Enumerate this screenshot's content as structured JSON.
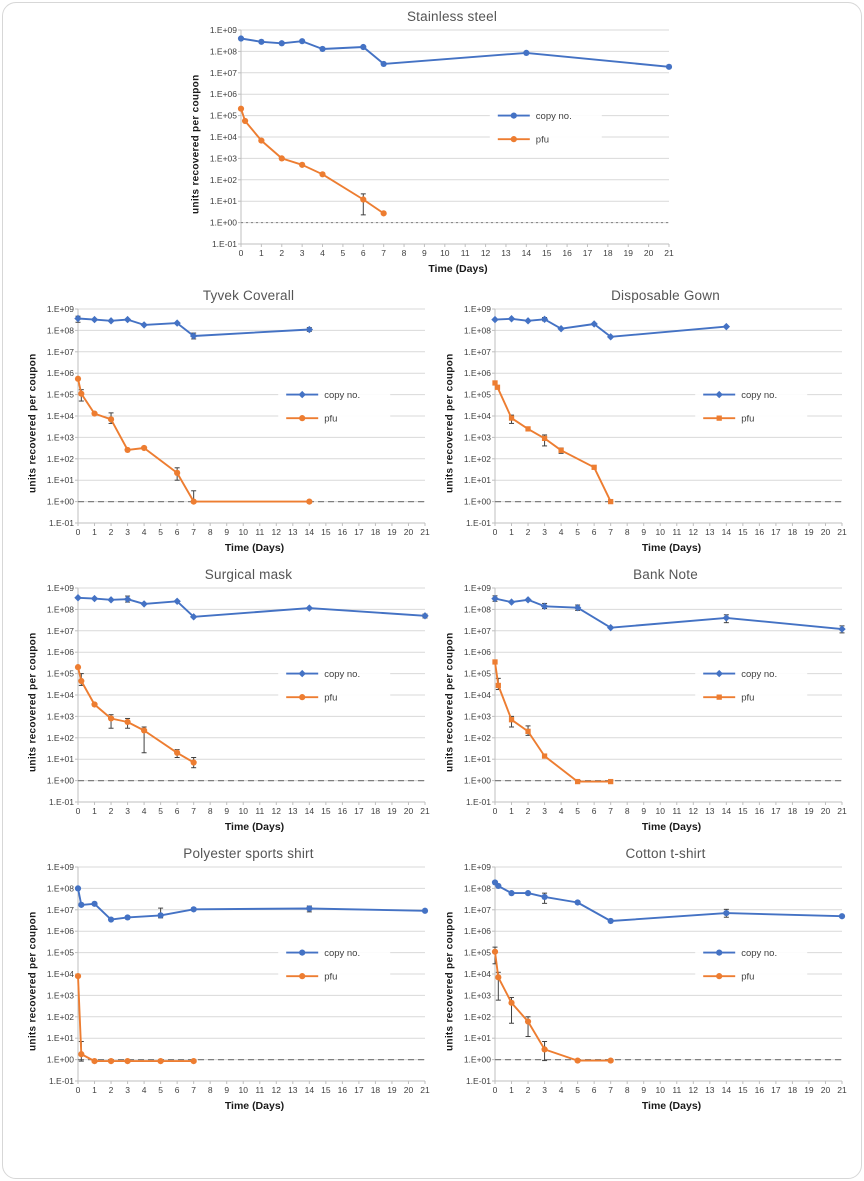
{
  "page": {
    "kind": "multi-panel scientific figure",
    "background": "#ffffff",
    "frame_color": "#d7d7d7"
  },
  "colors": {
    "copy_no": "#4472C4",
    "pfu": "#ED7D31",
    "gridline": "#d9d9d9",
    "axis": "#bfbfbf",
    "error_bar": "#404040",
    "limit_line": "#7f7f7f",
    "tick_text": "#404040",
    "title_text": "#555555"
  },
  "axes": {
    "x_ticks": [
      0,
      1,
      2,
      3,
      4,
      5,
      6,
      7,
      8,
      9,
      10,
      11,
      12,
      13,
      14,
      15,
      16,
      17,
      18,
      19,
      20,
      21
    ],
    "y_tick_labels": [
      "1.E+09",
      "1.E+08",
      "1.E+07",
      "1.E+06",
      "1.E+05",
      "1.E+04",
      "1.E+03",
      "1.E+02",
      "1.E+01",
      "1.E+00",
      "1.E-01"
    ],
    "y_exp_max": 9,
    "y_exp_min": -1,
    "xlim": [
      0,
      21
    ]
  },
  "legend": {
    "items": [
      {
        "label": "copy no.",
        "color": "#4472C4"
      },
      {
        "label": "pfu",
        "color": "#ED7D31"
      }
    ],
    "position": "inside-right"
  },
  "chart_data": [
    {
      "type": "line",
      "title": "Stainless steel",
      "xlabel": "Time (Days)",
      "ylabel": "units recovered per coupon",
      "xlim": [
        0,
        21
      ],
      "ylim": [
        0.1,
        1000000000
      ],
      "y_scale": "log",
      "grid": true,
      "detection_limit": 1,
      "limit_line_style": "dotted",
      "series": [
        {
          "name": "copy no.",
          "color": "#4472C4",
          "marker": "circle",
          "points": [
            [
              0,
              400000000.0
            ],
            [
              1,
              280000000.0
            ],
            [
              2,
              240000000.0
            ],
            [
              3,
              300000000.0
            ],
            [
              4,
              130000000.0
            ],
            [
              6,
              160000000.0
            ],
            [
              7,
              26000000.0
            ],
            [
              14,
              85000000.0
            ],
            [
              21,
              19000000.0
            ]
          ]
        },
        {
          "name": "pfu",
          "color": "#ED7D31",
          "marker": "circle",
          "points": [
            [
              0,
              210000.0
            ],
            [
              0.2,
              56000.0
            ],
            [
              1,
              6800.0
            ],
            [
              2,
              1000.0
            ],
            [
              3,
              500.0
            ],
            [
              4,
              180.0
            ],
            [
              6,
              12.0,
              2.3,
              22.0
            ],
            [
              7,
              2.7
            ]
          ]
        }
      ]
    },
    {
      "type": "line",
      "title": "Tyvek Coverall",
      "xlabel": "Time (Days)",
      "ylabel": "units recovered per coupon",
      "xlim": [
        0,
        21
      ],
      "ylim": [
        0.1,
        1000000000
      ],
      "y_scale": "log",
      "grid": true,
      "detection_limit": 1,
      "limit_line_style": "dashed",
      "series": [
        {
          "name": "copy no.",
          "color": "#4472C4",
          "marker": "diamond",
          "points": [
            [
              0,
              360000000.0,
              240000000.0,
              460000000.0
            ],
            [
              1,
              320000000.0
            ],
            [
              2,
              280000000.0
            ],
            [
              3,
              320000000.0
            ],
            [
              4,
              180000000.0
            ],
            [
              6,
              220000000.0
            ],
            [
              7,
              55000000.0,
              40000000.0,
              75000000.0
            ],
            [
              14,
              110000000.0,
              90000000.0,
              135000000.0
            ]
          ]
        },
        {
          "name": "pfu",
          "color": "#ED7D31",
          "marker": "circle",
          "points": [
            [
              0,
              550000.0
            ],
            [
              0.2,
              110000.0,
              50000.0,
              170000.0
            ],
            [
              1,
              13000.0
            ],
            [
              2,
              7000.0,
              4500.0,
              14000.0
            ],
            [
              3,
              260.0
            ],
            [
              4,
              320.0
            ],
            [
              6,
              22.0,
              10.0,
              38.0
            ],
            [
              7,
              1.0,
              1.0,
              3.2
            ],
            [
              14,
              1.0
            ]
          ]
        }
      ]
    },
    {
      "type": "line",
      "title": "Disposable Gown",
      "xlabel": "Time (Days)",
      "ylabel": "units recovered per coupon",
      "xlim": [
        0,
        21
      ],
      "ylim": [
        0.1,
        1000000000
      ],
      "y_scale": "log",
      "grid": true,
      "detection_limit": 1,
      "limit_line_style": "dashed",
      "series": [
        {
          "name": "copy no.",
          "color": "#4472C4",
          "marker": "diamond",
          "points": [
            [
              0,
              320000000.0
            ],
            [
              1,
              350000000.0
            ],
            [
              2,
              280000000.0
            ],
            [
              3,
              330000000.0,
              280000000.0,
              400000000.0
            ],
            [
              4,
              120000000.0
            ],
            [
              6,
              200000000.0
            ],
            [
              7,
              50000000.0
            ],
            [
              14,
              150000000.0
            ]
          ]
        },
        {
          "name": "pfu",
          "color": "#ED7D31",
          "marker": "square",
          "points": [
            [
              0,
              350000.0
            ],
            [
              0.15,
              220000.0
            ],
            [
              1,
              8000.0,
              4500.0,
              11000.0
            ],
            [
              2,
              2500.0
            ],
            [
              3,
              900.0,
              400.0,
              1300.0
            ],
            [
              4,
              250.0,
              180.0,
              320.0
            ],
            [
              6,
              40.0
            ],
            [
              7,
              1.0
            ]
          ]
        }
      ]
    },
    {
      "type": "line",
      "title": "Surgical mask",
      "xlabel": "Time (Days)",
      "ylabel": "units recovered per coupon",
      "xlim": [
        0,
        21
      ],
      "ylim": [
        0.1,
        1000000000
      ],
      "y_scale": "log",
      "grid": true,
      "detection_limit": 1,
      "limit_line_style": "dashed",
      "series": [
        {
          "name": "copy no.",
          "color": "#4472C4",
          "marker": "diamond",
          "points": [
            [
              0,
              350000000.0
            ],
            [
              1,
              320000000.0
            ],
            [
              2,
              280000000.0
            ],
            [
              3,
              300000000.0,
              220000000.0,
              420000000.0
            ],
            [
              4,
              180000000.0
            ],
            [
              6,
              240000000.0
            ],
            [
              7,
              45000000.0
            ],
            [
              14,
              115000000.0
            ],
            [
              21,
              50000000.0,
              40000000.0,
              60000000.0
            ]
          ]
        },
        {
          "name": "pfu",
          "color": "#ED7D31",
          "marker": "circle",
          "points": [
            [
              0,
              200000.0
            ],
            [
              0.2,
              45000.0,
              28000.0,
              100000.0
            ],
            [
              1,
              3600.0
            ],
            [
              2,
              800.0,
              280.0,
              1200.0
            ],
            [
              3,
              550.0,
              280.0,
              800.0
            ],
            [
              4,
              220.0,
              20.0,
              320.0
            ],
            [
              6,
              20.0,
              12.0,
              28.0
            ],
            [
              7,
              7.0,
              4.0,
              12.0
            ]
          ]
        }
      ]
    },
    {
      "type": "line",
      "title": "Bank Note",
      "xlabel": "Time (Days)",
      "ylabel": "units recovered per coupon",
      "xlim": [
        0,
        21
      ],
      "ylim": [
        0.1,
        1000000000
      ],
      "y_scale": "log",
      "grid": true,
      "detection_limit": 1,
      "limit_line_style": "dashed",
      "series": [
        {
          "name": "copy no.",
          "color": "#4472C4",
          "marker": "diamond",
          "points": [
            [
              0,
              320000000.0,
              240000000.0,
              430000000.0
            ],
            [
              1,
              220000000.0
            ],
            [
              2,
              280000000.0
            ],
            [
              3,
              140000000.0,
              110000000.0,
              190000000.0
            ],
            [
              5,
              120000000.0,
              90000000.0,
              160000000.0
            ],
            [
              7,
              14000000.0
            ],
            [
              14,
              40000000.0,
              24000000.0,
              56000000.0
            ],
            [
              21,
              12000000.0,
              8000000.0,
              17000000.0
            ]
          ]
        },
        {
          "name": "pfu",
          "color": "#ED7D31",
          "marker": "square",
          "points": [
            [
              0,
              350000.0
            ],
            [
              0.2,
              28000.0,
              18000.0,
              60000.0
            ],
            [
              1,
              700.0,
              320.0,
              1000.0
            ],
            [
              2,
              200.0,
              130.0,
              360.0
            ],
            [
              3,
              14.0
            ],
            [
              5,
              0.9
            ],
            [
              7,
              0.9
            ]
          ]
        }
      ]
    },
    {
      "type": "line",
      "title": "Polyester sports shirt",
      "xlabel": "Time (Days)",
      "ylabel": "units recovered per coupon",
      "xlim": [
        0,
        21
      ],
      "ylim": [
        0.1,
        1000000000
      ],
      "y_scale": "log",
      "grid": true,
      "detection_limit": 1,
      "limit_line_style": "dashed",
      "series": [
        {
          "name": "copy no.",
          "color": "#4472C4",
          "marker": "circle",
          "points": [
            [
              0,
              100000000.0
            ],
            [
              0.2,
              17000000.0
            ],
            [
              1,
              19000000.0
            ],
            [
              2,
              3500000.0
            ],
            [
              3,
              4400000.0
            ],
            [
              5,
              5500000.0,
              4200000.0,
              12000000.0
            ],
            [
              7,
              10500000.0
            ],
            [
              14,
              11500000.0,
              8000000.0,
              15000000.0
            ],
            [
              21,
              9000000.0
            ]
          ]
        },
        {
          "name": "pfu",
          "color": "#ED7D31",
          "marker": "circle",
          "points": [
            [
              0,
              8000.0
            ],
            [
              0.2,
              1.8,
              0.85,
              7.0
            ],
            [
              1,
              0.85
            ],
            [
              2,
              0.85
            ],
            [
              3,
              0.85
            ],
            [
              5,
              0.85
            ],
            [
              7,
              0.85
            ]
          ]
        }
      ]
    },
    {
      "type": "line",
      "title": "Cotton t-shirt",
      "xlabel": "Time (Days)",
      "ylabel": "units recovered per coupon",
      "xlim": [
        0,
        21
      ],
      "ylim": [
        0.1,
        1000000000
      ],
      "y_scale": "log",
      "grid": true,
      "detection_limit": 1,
      "limit_line_style": "dashed",
      "series": [
        {
          "name": "copy no.",
          "color": "#4472C4",
          "marker": "circle",
          "points": [
            [
              0,
              190000000.0
            ],
            [
              0.2,
              130000000.0
            ],
            [
              1,
              60000000.0
            ],
            [
              2,
              60000000.0
            ],
            [
              3,
              40000000.0,
              20000000.0,
              60000000.0
            ],
            [
              5,
              22000000.0
            ],
            [
              7,
              3000000.0
            ],
            [
              14,
              7000000.0,
              4500000.0,
              10500000.0
            ],
            [
              21,
              5000000.0
            ]
          ]
        },
        {
          "name": "pfu",
          "color": "#ED7D31",
          "marker": "circle",
          "points": [
            [
              0,
              110000.0,
              30000.0,
              180000.0
            ],
            [
              0.2,
              7000.0,
              600.0,
              12000.0
            ],
            [
              1,
              450.0,
              50.0,
              800.0
            ],
            [
              2,
              60.0,
              12.0,
              100.0
            ],
            [
              3,
              3.0,
              0.9,
              7.0
            ],
            [
              5,
              0.9
            ],
            [
              7,
              0.9
            ]
          ]
        }
      ]
    }
  ]
}
